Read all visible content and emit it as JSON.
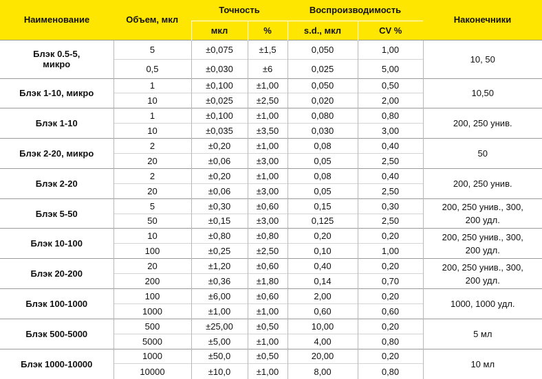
{
  "header": {
    "name": "Наименование",
    "volume": "Объем, мкл",
    "accuracy": "Точность",
    "reproducibility": "Воспроизводимость",
    "tips": "Наконечники",
    "acc_mkl": "мкл",
    "acc_pct": "%",
    "sd": "s.d., мкл",
    "cv": "CV %"
  },
  "groups": [
    {
      "name": "Блэк 0.5-5,\nмикро",
      "tips": "10, 50",
      "rows": [
        [
          "5",
          "±0,075",
          "±1,5",
          "0,050",
          "1,00"
        ],
        [
          "0,5",
          "±0,030",
          "±6",
          "0,025",
          "5,00"
        ]
      ]
    },
    {
      "name": "Блэк 1-10, микро",
      "tips": "10,50",
      "rows": [
        [
          "1",
          "±0,100",
          "±1,00",
          "0,050",
          "0,50"
        ],
        [
          "10",
          "±0,025",
          "±2,50",
          "0,020",
          "2,00"
        ]
      ]
    },
    {
      "name": "Блэк 1-10",
      "tips": "200, 250 унив.",
      "rows": [
        [
          "1",
          "±0,100",
          "±1,00",
          "0,080",
          "0,80"
        ],
        [
          "10",
          "±0,035",
          "±3,50",
          "0,030",
          "3,00"
        ]
      ]
    },
    {
      "name": "Блэк 2-20, микро",
      "tips": "50",
      "rows": [
        [
          "2",
          "±0,20",
          "±1,00",
          "0,08",
          "0,40"
        ],
        [
          "20",
          "±0,06",
          "±3,00",
          "0,05",
          "2,50"
        ]
      ]
    },
    {
      "name": "Блэк 2-20",
      "tips": "200, 250 унив.",
      "rows": [
        [
          "2",
          "±0,20",
          "±1,00",
          "0,08",
          "0,40"
        ],
        [
          "20",
          "±0,06",
          "±3,00",
          "0,05",
          "2,50"
        ]
      ]
    },
    {
      "name": "Блэк 5-50",
      "tips": "200, 250 унив., 300,\n200 удл.",
      "rows": [
        [
          "5",
          "±0,30",
          "±0,60",
          "0,15",
          "0,30"
        ],
        [
          "50",
          "±0,15",
          "±3,00",
          "0,125",
          "2,50"
        ]
      ]
    },
    {
      "name": "Блэк 10-100",
      "tips": "200, 250 унив., 300,\n200 удл.",
      "rows": [
        [
          "10",
          "±0,80",
          "±0,80",
          "0,20",
          "0,20"
        ],
        [
          "100",
          "±0,25",
          "±2,50",
          "0,10",
          "1,00"
        ]
      ]
    },
    {
      "name": "Блэк 20-200",
      "tips": "200, 250 унив., 300,\n200 удл.",
      "rows": [
        [
          "20",
          "±1,20",
          "±0,60",
          "0,40",
          "0,20"
        ],
        [
          "200",
          "±0,36",
          "±1,80",
          "0,14",
          "0,70"
        ]
      ]
    },
    {
      "name": "Блэк 100-1000",
      "tips": "1000, 1000 удл.",
      "rows": [
        [
          "100",
          "±6,00",
          "±0,60",
          "2,00",
          "0,20"
        ],
        [
          "1000",
          "±1,00",
          "±1,00",
          "0,60",
          "0,60"
        ]
      ]
    },
    {
      "name": "Блэк 500-5000",
      "tips": "5 мл",
      "rows": [
        [
          "500",
          "±25,00",
          "±0,50",
          "10,00",
          "0,20"
        ],
        [
          "5000",
          "±5,00",
          "±1,00",
          "4,00",
          "0,80"
        ]
      ]
    },
    {
      "name": "Блэк 1000-10000",
      "tips": "10 мл",
      "rows": [
        [
          "1000",
          "±50,0",
          "±0,50",
          "20,00",
          "0,20"
        ],
        [
          "10000",
          "±10,0",
          "±1,00",
          "8,00",
          "0,80"
        ]
      ]
    }
  ]
}
